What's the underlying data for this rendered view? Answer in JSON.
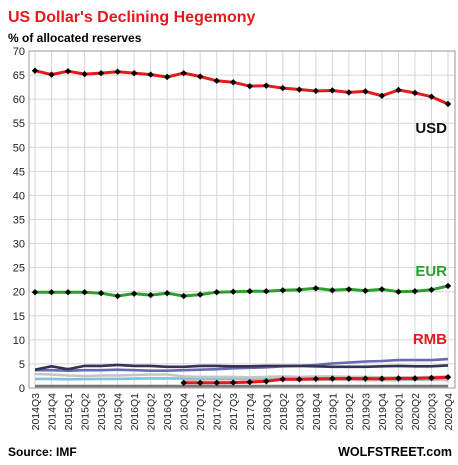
{
  "chart_data": {
    "type": "line",
    "title": "US Dollar's Declining Hegemony",
    "subtitle": "% of allocated reserves",
    "source": "Source: IMF",
    "brand": "WOLFSTREET.com",
    "xlabel": "",
    "ylabel": "",
    "ylim": [
      0,
      70
    ],
    "yticks": [
      0,
      5,
      10,
      15,
      20,
      25,
      30,
      35,
      40,
      45,
      50,
      55,
      60,
      65,
      70
    ],
    "grid": true,
    "legend": "none",
    "title_color": "#e41a1c",
    "categories": [
      "2014Q3",
      "2014Q4",
      "2015Q1",
      "2015Q2",
      "2015Q3",
      "2015Q4",
      "2016Q1",
      "2016Q2",
      "2016Q3",
      "2016Q4",
      "2017Q1",
      "2017Q2",
      "2017Q3",
      "2017Q4",
      "2018Q1",
      "2018Q2",
      "2018Q3",
      "2018Q4",
      "2019Q1",
      "2019Q2",
      "2019Q3",
      "2019Q4",
      "2020Q1",
      "2020Q2",
      "2020Q3",
      "2020Q4"
    ],
    "x_labels": [
      "2014Q3",
      "2014Q4",
      "2015Q1",
      "2015Q2",
      "2015Q3",
      "2015Q4",
      "2016Q1",
      "2016Q2",
      "2016Q3",
      "2016Q4",
      "2017Q1",
      "2017Q2",
      "2017Q3",
      "2017Q4",
      "2018Q1",
      "2018Q2",
      "2018Q3",
      "2018Q4",
      "2019Q1",
      "2019Q2",
      "2019Q3",
      "2019Q4",
      "2020Q1",
      "2020Q2",
      "2020Q3",
      "2020Q4"
    ],
    "series": [
      {
        "name": "",
        "color": "#777777",
        "marker": "none",
        "values": [
          0.4,
          0.4,
          0.4,
          0.4,
          0.4,
          0.4,
          0.4,
          0.4,
          0.4,
          0.4,
          0.4,
          0.4,
          0.4,
          0.4,
          0.4,
          0.4,
          0.4,
          0.4,
          0.4,
          0.4,
          0.4,
          0.4,
          0.4,
          0.4,
          0.4,
          0.4
        ]
      },
      {
        "name": "",
        "color": "#d9b8b8",
        "marker": "none",
        "values": [
          null,
          null,
          null,
          null,
          null,
          null,
          null,
          null,
          null,
          1.7,
          1.75,
          1.8,
          1.8,
          1.85,
          1.8,
          1.7,
          1.7,
          1.7,
          1.7,
          1.7,
          1.6,
          1.65,
          1.6,
          1.75,
          1.7,
          1.65
        ]
      },
      {
        "name": "",
        "color": "#7fc4d6",
        "marker": "none",
        "values": [
          1.9,
          1.9,
          1.8,
          1.85,
          1.9,
          1.9,
          1.95,
          2.0,
          2.0,
          1.95,
          1.95,
          1.95,
          2.0,
          2.0,
          1.9,
          1.85,
          1.8,
          1.85,
          1.9,
          1.9,
          1.85,
          1.9,
          1.85,
          1.8,
          1.85,
          2.1
        ]
      },
      {
        "name": "",
        "color": "#c5c5c5",
        "marker": "none",
        "values": [
          2.9,
          2.8,
          2.6,
          2.5,
          2.6,
          2.6,
          2.7,
          2.8,
          2.8,
          2.4,
          2.3,
          2.3,
          2.3,
          2.2,
          2.3,
          2.4,
          2.3,
          2.4,
          2.4,
          2.3,
          2.3,
          2.2,
          2.2,
          2.2,
          2.3,
          2.4
        ]
      },
      {
        "name": "",
        "color": "#6a6ab0",
        "marker": "none",
        "values": [
          3.7,
          3.7,
          3.6,
          3.7,
          3.7,
          3.8,
          3.7,
          3.6,
          3.6,
          3.7,
          3.8,
          3.9,
          4.1,
          4.2,
          4.3,
          4.5,
          4.6,
          4.8,
          5.1,
          5.3,
          5.5,
          5.6,
          5.8,
          5.8,
          5.8,
          6.0
        ]
      },
      {
        "name": "",
        "color": "#333355",
        "marker": "none",
        "values": [
          3.8,
          4.5,
          3.9,
          4.6,
          4.6,
          4.8,
          4.6,
          4.6,
          4.4,
          4.4,
          4.6,
          4.6,
          4.5,
          4.5,
          4.6,
          4.6,
          4.6,
          4.5,
          4.4,
          4.4,
          4.4,
          4.5,
          4.6,
          4.5,
          4.5,
          4.7
        ]
      },
      {
        "name": "RMB",
        "color": "#e41a1c",
        "marker": "diamond",
        "values": [
          null,
          null,
          null,
          null,
          null,
          null,
          null,
          null,
          null,
          1.07,
          1.08,
          1.08,
          1.12,
          1.23,
          1.4,
          1.84,
          1.8,
          1.89,
          1.95,
          1.97,
          1.95,
          1.94,
          2.0,
          2.0,
          2.1,
          2.25
        ]
      },
      {
        "name": "EUR",
        "color": "#2ca02c",
        "marker": "diamond",
        "values": [
          19.9,
          19.9,
          19.9,
          19.9,
          19.7,
          19.1,
          19.6,
          19.3,
          19.7,
          19.1,
          19.4,
          19.9,
          20.0,
          20.1,
          20.1,
          20.3,
          20.4,
          20.7,
          20.3,
          20.5,
          20.2,
          20.5,
          20.0,
          20.1,
          20.4,
          21.2
        ]
      },
      {
        "name": "USD",
        "color": "#e41a1c",
        "marker": "diamond",
        "values": [
          65.9,
          65.1,
          65.8,
          65.2,
          65.4,
          65.7,
          65.4,
          65.1,
          64.6,
          65.4,
          64.7,
          63.8,
          63.5,
          62.7,
          62.8,
          62.3,
          62.0,
          61.7,
          61.8,
          61.4,
          61.6,
          60.7,
          61.9,
          61.3,
          60.5,
          59.0
        ]
      }
    ],
    "series_labels": [
      {
        "text": "USD",
        "color": "#111111"
      },
      {
        "text": "EUR",
        "color": "#2ca02c"
      },
      {
        "text": "RMB",
        "color": "#e41a1c"
      }
    ]
  }
}
